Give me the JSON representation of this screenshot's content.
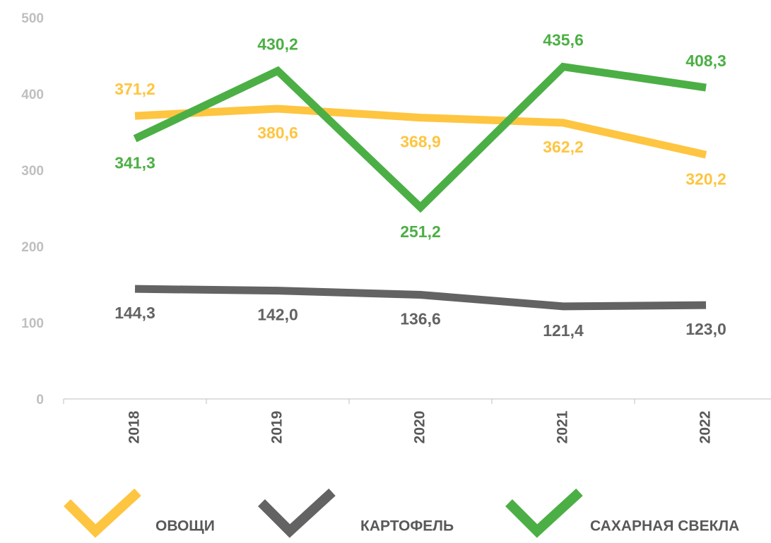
{
  "chart_data": {
    "type": "line",
    "categories": [
      "2018",
      "2019",
      "2020",
      "2021",
      "2022"
    ],
    "series": [
      {
        "name": "ОВОЩИ",
        "color": "#fec541",
        "values": [
          371.2,
          380.6,
          368.9,
          362.2,
          320.2
        ],
        "value_labels": [
          "371,2",
          "380,6",
          "368,9",
          "362,2",
          "320,2"
        ]
      },
      {
        "name": "КАРТОФЕЛЬ",
        "color": "#636363",
        "values": [
          144.3,
          142.0,
          136.6,
          121.4,
          123.0
        ],
        "value_labels": [
          "144,3",
          "142,0",
          "136,6",
          "121,4",
          "123,0"
        ]
      },
      {
        "name": "САХАРНАЯ СВЕКЛА",
        "color": "#4caf45",
        "values": [
          341.3,
          430.2,
          251.2,
          435.6,
          408.3
        ],
        "value_labels": [
          "341,3",
          "430,2",
          "251,2",
          "435,6",
          "408,3"
        ]
      }
    ],
    "ylim": [
      0,
      500
    ],
    "yticks": [
      0,
      100,
      200,
      300,
      400,
      500
    ]
  }
}
